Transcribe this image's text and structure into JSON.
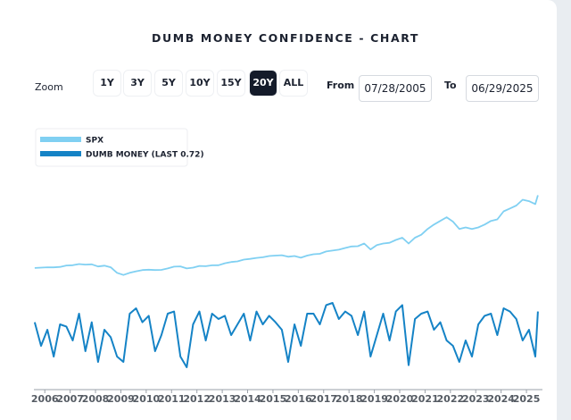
{
  "chart_data": {
    "type": "line",
    "title": "DUMB MONEY CONFIDENCE - CHART",
    "x": [
      2005.6,
      2005.85,
      2006.1,
      2006.35,
      2006.6,
      2006.85,
      2007.1,
      2007.35,
      2007.6,
      2007.85,
      2008.1,
      2008.35,
      2008.6,
      2008.85,
      2009.1,
      2009.35,
      2009.6,
      2009.85,
      2010.1,
      2010.35,
      2010.6,
      2010.85,
      2011.1,
      2011.35,
      2011.6,
      2011.85,
      2012.1,
      2012.35,
      2012.6,
      2012.85,
      2013.1,
      2013.35,
      2013.6,
      2013.85,
      2014.1,
      2014.35,
      2014.6,
      2014.85,
      2015.1,
      2015.35,
      2015.6,
      2015.85,
      2016.1,
      2016.35,
      2016.6,
      2016.85,
      2017.1,
      2017.35,
      2017.6,
      2017.85,
      2018.1,
      2018.35,
      2018.6,
      2018.85,
      2019.1,
      2019.35,
      2019.6,
      2019.85,
      2020.1,
      2020.35,
      2020.6,
      2020.85,
      2021.1,
      2021.35,
      2021.6,
      2021.85,
      2022.1,
      2022.35,
      2022.6,
      2022.85,
      2023.1,
      2023.35,
      2023.6,
      2023.85,
      2024.1,
      2024.35,
      2024.6,
      2024.85,
      2025.1,
      2025.35,
      2025.45
    ],
    "xlim": [
      2005.57,
      2025.49
    ],
    "xticks": [
      2006,
      2007,
      2008,
      2009,
      2010,
      2011,
      2012,
      2013,
      2014,
      2015,
      2016,
      2017,
      2018,
      2019,
      2020,
      2021,
      2022,
      2023,
      2024,
      2025
    ],
    "ylim": [
      0,
      11000
    ],
    "y2lim": [
      0,
      1
    ],
    "series": [
      {
        "name": "SPX",
        "color": "#80d0f2",
        "values": [
          1230,
          1250,
          1280,
          1270,
          1300,
          1400,
          1420,
          1500,
          1460,
          1480,
          1330,
          1390,
          1280,
          900,
          750,
          900,
          1000,
          1090,
          1110,
          1090,
          1100,
          1200,
          1320,
          1340,
          1200,
          1250,
          1370,
          1350,
          1410,
          1420,
          1550,
          1640,
          1680,
          1800,
          1850,
          1920,
          1960,
          2050,
          2080,
          2100,
          2000,
          2050,
          1930,
          2080,
          2170,
          2200,
          2360,
          2420,
          2480,
          2600,
          2700,
          2720,
          2900,
          2500,
          2800,
          2900,
          2950,
          3150,
          3300,
          2900,
          3300,
          3500,
          3900,
          4200,
          4450,
          4700,
          4400,
          3900,
          4000,
          3900,
          4000,
          4200,
          4450,
          4550,
          5100,
          5300,
          5500,
          5900,
          5800,
          5600,
          6200
        ]
      },
      {
        "name": "DUMB MONEY (LAST 0.72)",
        "color": "#1583c6",
        "axis": "y2",
        "values": [
          0.62,
          0.4,
          0.55,
          0.3,
          0.6,
          0.58,
          0.45,
          0.7,
          0.35,
          0.62,
          0.25,
          0.55,
          0.48,
          0.3,
          0.25,
          0.7,
          0.75,
          0.62,
          0.68,
          0.35,
          0.5,
          0.7,
          0.72,
          0.3,
          0.2,
          0.6,
          0.72,
          0.45,
          0.7,
          0.65,
          0.68,
          0.5,
          0.6,
          0.7,
          0.45,
          0.72,
          0.6,
          0.68,
          0.62,
          0.55,
          0.25,
          0.6,
          0.4,
          0.7,
          0.7,
          0.6,
          0.78,
          0.8,
          0.65,
          0.72,
          0.68,
          0.5,
          0.72,
          0.3,
          0.5,
          0.7,
          0.45,
          0.72,
          0.78,
          0.22,
          0.65,
          0.7,
          0.72,
          0.55,
          0.62,
          0.45,
          0.4,
          0.25,
          0.45,
          0.3,
          0.6,
          0.68,
          0.7,
          0.5,
          0.75,
          0.72,
          0.65,
          0.45,
          0.55,
          0.3,
          0.72
        ]
      }
    ],
    "legend": "upper left"
  },
  "controls": {
    "zoom_label": "Zoom",
    "zoom_options": [
      "1Y",
      "3Y",
      "5Y",
      "10Y",
      "15Y",
      "20Y",
      "ALL"
    ],
    "active_zoom": "20Y",
    "from_label": "From",
    "from_date": "07/28/2005",
    "to_label": "To",
    "to_date": "06/29/2025"
  }
}
